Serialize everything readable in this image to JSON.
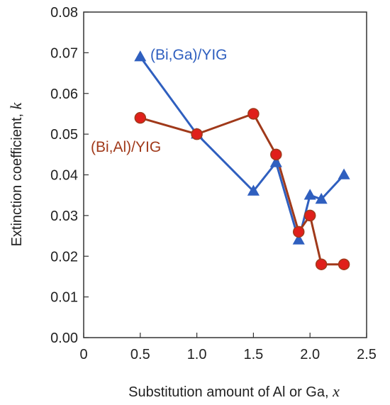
{
  "chart_data": {
    "type": "line",
    "xlabel": "Substitution amount of Al or Ga, ",
    "xlabel_var": "x",
    "ylabel": "Extinction coefficient, ",
    "ylabel_var": "k",
    "xlim": [
      0,
      2.5
    ],
    "ylim": [
      0,
      0.08
    ],
    "x_ticks": [
      "0",
      "0.5",
      "1.0",
      "1.5",
      "2.0",
      "2.5"
    ],
    "y_ticks": [
      "0.00",
      "0.01",
      "0.02",
      "0.03",
      "0.04",
      "0.05",
      "0.06",
      "0.07",
      "0.08"
    ],
    "grid": false,
    "series": [
      {
        "name": "(Bi,Ga)/YIG",
        "color": "#2f5fbf",
        "marker": "triangle",
        "x": [
          0.5,
          1.0,
          1.5,
          1.7,
          1.9,
          2.0,
          2.1,
          2.3
        ],
        "y": [
          0.069,
          0.05,
          0.036,
          0.043,
          0.024,
          0.035,
          0.034,
          0.04
        ]
      },
      {
        "name": "(Bi,Al)/YIG",
        "color": "#a0391a",
        "marker": "circle",
        "x": [
          0.5,
          1.0,
          1.5,
          1.7,
          1.9,
          2.0,
          2.1,
          2.3
        ],
        "y": [
          0.054,
          0.05,
          0.055,
          0.045,
          0.026,
          0.03,
          0.018,
          0.018
        ]
      }
    ]
  }
}
